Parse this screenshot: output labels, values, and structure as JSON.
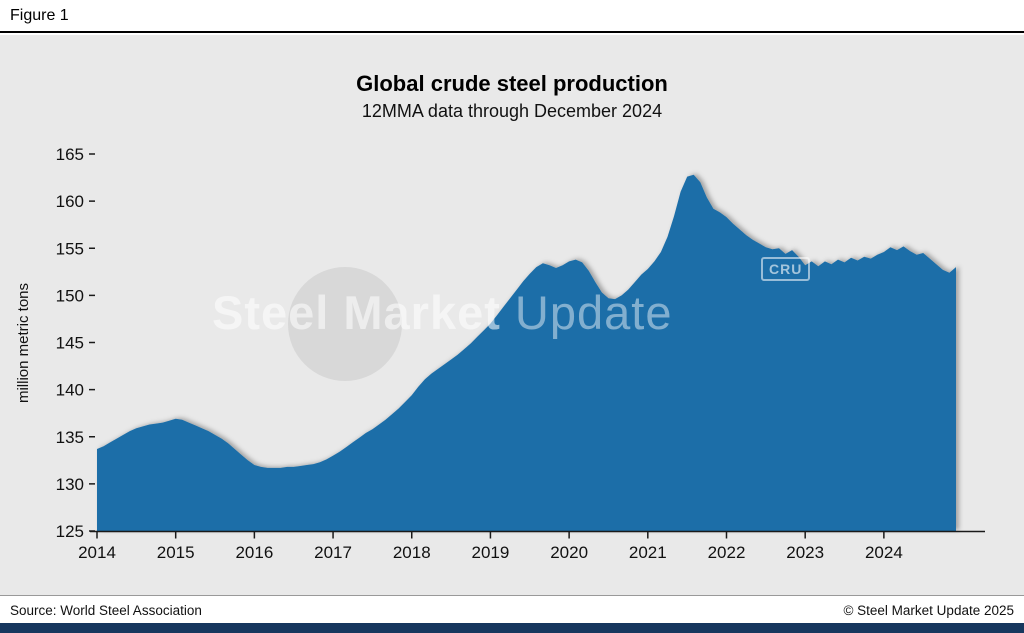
{
  "header": {
    "figure_label": "Figure 1"
  },
  "watermark": {
    "bold": "Steel Market",
    "light": "Update",
    "cru": "CRU"
  },
  "footer": {
    "source": "Source: World Steel Association",
    "copyright": "© Steel Market Update 2025"
  },
  "colors": {
    "area_fill": "#1c6ea8",
    "plot_background": "#e9e9e9",
    "brand_bar": "#17375e"
  },
  "chart_data": {
    "type": "area",
    "title": "Global crude steel production",
    "subtitle": "12MMA data through December 2024",
    "ylabel": "million metric tons",
    "xlabel": "",
    "ylim": [
      125,
      165
    ],
    "y_ticks": [
      125,
      130,
      135,
      140,
      145,
      150,
      155,
      160,
      165
    ],
    "x_tick_labels": [
      "2014",
      "2015",
      "2016",
      "2017",
      "2018",
      "2019",
      "2020",
      "2021",
      "2022",
      "2023",
      "2024"
    ],
    "frequency": "monthly",
    "x_start": "2014-01",
    "x_end": "2024-12",
    "grid": false,
    "legend": false,
    "fill_color": "#1c6ea8",
    "values": [
      133.7,
      134.0,
      134.4,
      134.8,
      135.2,
      135.6,
      135.9,
      136.1,
      136.3,
      136.4,
      136.5,
      136.7,
      136.9,
      136.8,
      136.5,
      136.2,
      135.9,
      135.6,
      135.2,
      134.8,
      134.3,
      133.7,
      133.1,
      132.5,
      132.0,
      131.8,
      131.7,
      131.7,
      131.7,
      131.8,
      131.8,
      131.9,
      132.0,
      132.1,
      132.3,
      132.6,
      133.0,
      133.4,
      133.9,
      134.4,
      134.9,
      135.4,
      135.8,
      136.3,
      136.8,
      137.4,
      138.0,
      138.7,
      139.4,
      140.3,
      141.1,
      141.7,
      142.2,
      142.7,
      143.2,
      143.7,
      144.3,
      144.9,
      145.6,
      146.3,
      147.0,
      147.9,
      148.8,
      149.7,
      150.6,
      151.5,
      152.3,
      153.0,
      153.4,
      153.2,
      152.9,
      153.2,
      153.6,
      153.8,
      153.5,
      152.6,
      151.4,
      150.3,
      149.7,
      149.6,
      150.0,
      150.6,
      151.4,
      152.2,
      152.8,
      153.6,
      154.6,
      156.2,
      158.4,
      161.0,
      162.6,
      162.8,
      162.0,
      160.4,
      159.2,
      158.8,
      158.3,
      157.6,
      157.0,
      156.4,
      155.9,
      155.5,
      155.1,
      154.9,
      155.0,
      154.4,
      154.8,
      154.1,
      153.2,
      153.6,
      153.1,
      153.6,
      153.3,
      153.8,
      153.5,
      154.0,
      153.7,
      154.1,
      153.9,
      154.3,
      154.6,
      155.1,
      154.8,
      155.2,
      154.7,
      154.3,
      154.5,
      153.9,
      153.3,
      152.7,
      152.4,
      153.0
    ]
  }
}
